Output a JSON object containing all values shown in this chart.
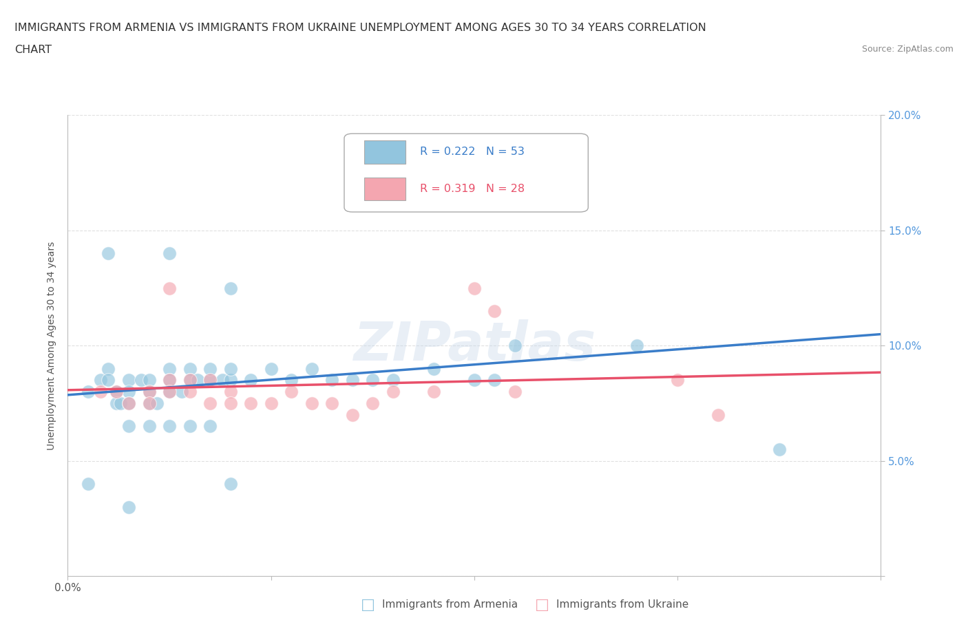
{
  "title_line1": "IMMIGRANTS FROM ARMENIA VS IMMIGRANTS FROM UKRAINE UNEMPLOYMENT AMONG AGES 30 TO 34 YEARS CORRELATION",
  "title_line2": "CHART",
  "source": "Source: ZipAtlas.com",
  "ylabel": "Unemployment Among Ages 30 to 34 years",
  "xlim": [
    0.0,
    0.2
  ],
  "ylim": [
    0.0,
    0.2
  ],
  "xticks": [
    0.0,
    0.05,
    0.1,
    0.15,
    0.2
  ],
  "yticks": [
    0.0,
    0.05,
    0.1,
    0.15,
    0.2
  ],
  "xtick_labels": [
    "0.0%",
    "",
    "",
    "",
    ""
  ],
  "right_ytick_labels": [
    "",
    "5.0%",
    "10.0%",
    "15.0%",
    "20.0%"
  ],
  "armenia_color": "#92C5DE",
  "ukraine_color": "#F4A6B0",
  "armenia_line_color": "#3A7DC9",
  "ukraine_line_color": "#E8506A",
  "watermark": "ZIPatlas",
  "armenia_scatter": [
    [
      0.005,
      0.08
    ],
    [
      0.008,
      0.085
    ],
    [
      0.01,
      0.09
    ],
    [
      0.01,
      0.085
    ],
    [
      0.012,
      0.08
    ],
    [
      0.012,
      0.075
    ],
    [
      0.013,
      0.075
    ],
    [
      0.015,
      0.085
    ],
    [
      0.015,
      0.08
    ],
    [
      0.015,
      0.075
    ],
    [
      0.018,
      0.085
    ],
    [
      0.02,
      0.085
    ],
    [
      0.02,
      0.08
    ],
    [
      0.02,
      0.075
    ],
    [
      0.022,
      0.075
    ],
    [
      0.025,
      0.09
    ],
    [
      0.025,
      0.085
    ],
    [
      0.025,
      0.08
    ],
    [
      0.028,
      0.08
    ],
    [
      0.03,
      0.09
    ],
    [
      0.03,
      0.085
    ],
    [
      0.032,
      0.085
    ],
    [
      0.035,
      0.085
    ],
    [
      0.035,
      0.09
    ],
    [
      0.038,
      0.085
    ],
    [
      0.04,
      0.085
    ],
    [
      0.04,
      0.09
    ],
    [
      0.045,
      0.085
    ],
    [
      0.05,
      0.09
    ],
    [
      0.055,
      0.085
    ],
    [
      0.06,
      0.09
    ],
    [
      0.065,
      0.085
    ],
    [
      0.07,
      0.085
    ],
    [
      0.075,
      0.085
    ],
    [
      0.08,
      0.085
    ],
    [
      0.09,
      0.09
    ],
    [
      0.1,
      0.085
    ],
    [
      0.105,
      0.085
    ],
    [
      0.11,
      0.1
    ],
    [
      0.12,
      0.17
    ],
    [
      0.14,
      0.1
    ],
    [
      0.01,
      0.14
    ],
    [
      0.025,
      0.14
    ],
    [
      0.04,
      0.125
    ],
    [
      0.015,
      0.065
    ],
    [
      0.02,
      0.065
    ],
    [
      0.025,
      0.065
    ],
    [
      0.03,
      0.065
    ],
    [
      0.035,
      0.065
    ],
    [
      0.04,
      0.04
    ],
    [
      0.005,
      0.04
    ],
    [
      0.015,
      0.03
    ],
    [
      0.175,
      0.055
    ]
  ],
  "ukraine_scatter": [
    [
      0.008,
      0.08
    ],
    [
      0.012,
      0.08
    ],
    [
      0.015,
      0.075
    ],
    [
      0.02,
      0.08
    ],
    [
      0.02,
      0.075
    ],
    [
      0.025,
      0.085
    ],
    [
      0.025,
      0.08
    ],
    [
      0.03,
      0.085
    ],
    [
      0.03,
      0.08
    ],
    [
      0.035,
      0.085
    ],
    [
      0.035,
      0.075
    ],
    [
      0.04,
      0.08
    ],
    [
      0.04,
      0.075
    ],
    [
      0.045,
      0.075
    ],
    [
      0.05,
      0.075
    ],
    [
      0.055,
      0.08
    ],
    [
      0.06,
      0.075
    ],
    [
      0.065,
      0.075
    ],
    [
      0.07,
      0.07
    ],
    [
      0.075,
      0.075
    ],
    [
      0.08,
      0.08
    ],
    [
      0.09,
      0.08
    ],
    [
      0.1,
      0.125
    ],
    [
      0.105,
      0.115
    ],
    [
      0.11,
      0.08
    ],
    [
      0.15,
      0.085
    ],
    [
      0.16,
      0.07
    ],
    [
      0.025,
      0.125
    ]
  ],
  "background_color": "#ffffff",
  "grid_color": "#e0e0e0"
}
